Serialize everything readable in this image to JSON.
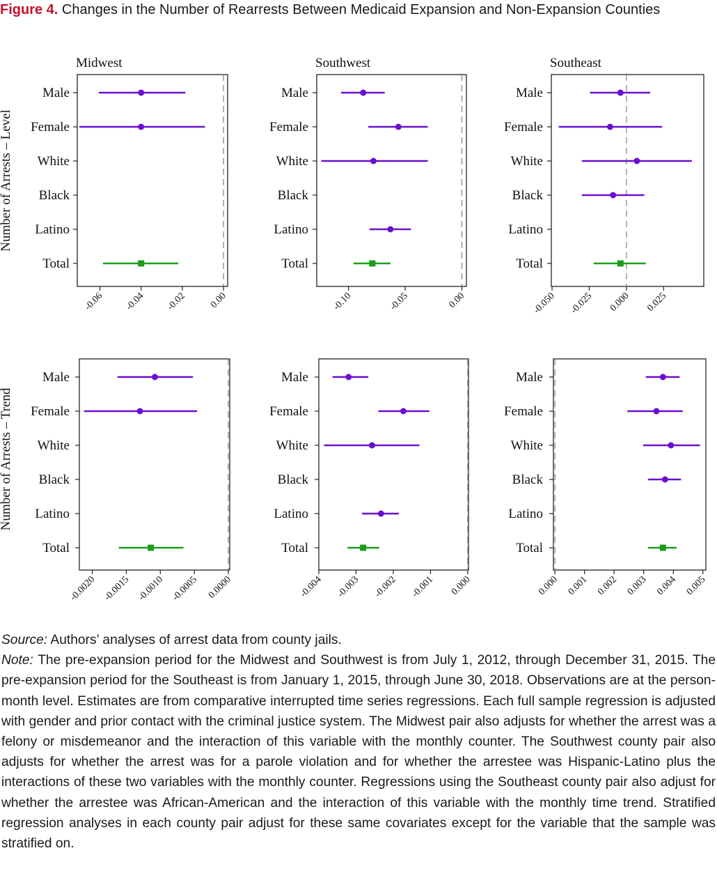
{
  "caption": {
    "label": "Figure 4.",
    "title": "Changes in the Number of Rearrests Between Medicaid Expansion and Non-Expansion Counties"
  },
  "chart_data": [
    {
      "type": "scatter",
      "subtype": "forest-plot",
      "row_label": "Number of Arrests – Level",
      "title": "Midwest",
      "xlim": [
        -0.071,
        0.002
      ],
      "ref_line": 0,
      "xticks": [
        -0.06,
        -0.04,
        -0.02,
        0.0
      ],
      "xtick_labels": [
        "-0.06",
        "-0.04",
        "-0.02",
        "0.00"
      ],
      "categories": [
        "Male",
        "Female",
        "White",
        "Black",
        "Latino",
        "Total"
      ],
      "estimates": [
        {
          "category": "Male",
          "est": -0.04,
          "lo": -0.0605,
          "hi": -0.0185
        },
        {
          "category": "Female",
          "est": -0.04,
          "lo": -0.07,
          "hi": -0.009
        },
        {
          "category": "Total",
          "est": -0.04,
          "lo": -0.0585,
          "hi": -0.022
        }
      ]
    },
    {
      "type": "scatter",
      "subtype": "forest-plot",
      "row_label": "",
      "title": "Southwest",
      "xlim": [
        -0.128,
        0.004
      ],
      "ref_line": 0,
      "xticks": [
        -0.1,
        -0.05,
        0.0
      ],
      "xtick_labels": [
        "-0.10",
        "-0.05",
        "0.00"
      ],
      "categories": [
        "Male",
        "Female",
        "White",
        "Black",
        "Latino",
        "Total"
      ],
      "estimates": [
        {
          "category": "Male",
          "est": -0.087,
          "lo": -0.1065,
          "hi": -0.068
        },
        {
          "category": "Female",
          "est": -0.056,
          "lo": -0.0825,
          "hi": -0.03
        },
        {
          "category": "White",
          "est": -0.078,
          "lo": -0.124,
          "hi": -0.03
        },
        {
          "category": "Latino",
          "est": -0.063,
          "lo": -0.0815,
          "hi": -0.045
        },
        {
          "category": "Total",
          "est": -0.079,
          "lo": -0.0955,
          "hi": -0.063
        }
      ]
    },
    {
      "type": "scatter",
      "subtype": "forest-plot",
      "row_label": "",
      "title": "Southeast",
      "xlim": [
        -0.0505,
        0.052
      ],
      "ref_line": 0,
      "xticks": [
        -0.05,
        -0.025,
        0.0,
        0.025
      ],
      "xtick_labels": [
        "-0.050",
        "-0.025",
        "0.000",
        "0.025"
      ],
      "categories": [
        "Male",
        "Female",
        "White",
        "Black",
        "Latino",
        "Total"
      ],
      "estimates": [
        {
          "category": "Male",
          "est": -0.004,
          "lo": -0.0245,
          "hi": 0.016
        },
        {
          "category": "Female",
          "est": -0.011,
          "lo": -0.0455,
          "hi": 0.024
        },
        {
          "category": "White",
          "est": 0.007,
          "lo": -0.03,
          "hi": 0.044
        },
        {
          "category": "Black",
          "est": -0.009,
          "lo": -0.03,
          "hi": 0.012
        },
        {
          "category": "Total",
          "est": -0.004,
          "lo": -0.022,
          "hi": 0.013
        }
      ]
    },
    {
      "type": "scatter",
      "subtype": "forest-plot",
      "row_label": "Number of Arrests – Trend",
      "title": "",
      "xlim": [
        -0.00219,
        2e-05
      ],
      "ref_line": 0,
      "xticks": [
        -0.002,
        -0.0015,
        -0.001,
        -0.0005,
        0.0
      ],
      "xtick_labels": [
        "-0.0020",
        "-0.0015",
        "-0.0010",
        "-0.0005",
        "0.0000"
      ],
      "categories": [
        "Male",
        "Female",
        "White",
        "Black",
        "Latino",
        "Total"
      ],
      "estimates": [
        {
          "category": "Male",
          "est": -0.00108,
          "lo": -0.00163,
          "hi": -0.00052
        },
        {
          "category": "Female",
          "est": -0.0013,
          "lo": -0.00212,
          "hi": -0.00046
        },
        {
          "category": "Total",
          "est": -0.00114,
          "lo": -0.00161,
          "hi": -0.00066
        }
      ]
    },
    {
      "type": "scatter",
      "subtype": "forest-plot",
      "row_label": "",
      "title": "",
      "xlim": [
        -0.004,
        2e-05
      ],
      "ref_line": 0,
      "xticks": [
        -0.004,
        -0.003,
        -0.002,
        -0.001,
        0.0
      ],
      "xtick_labels": [
        "-0.004",
        "-0.003",
        "-0.002",
        "-0.001",
        "0.000"
      ],
      "categories": [
        "Male",
        "Female",
        "White",
        "Black",
        "Latino",
        "Total"
      ],
      "estimates": [
        {
          "category": "Male",
          "est": -0.0032,
          "lo": -0.00363,
          "hi": -0.00267
        },
        {
          "category": "Female",
          "est": -0.00173,
          "lo": -0.0024,
          "hi": -0.00103
        },
        {
          "category": "White",
          "est": -0.00257,
          "lo": -0.00386,
          "hi": -0.0013
        },
        {
          "category": "Latino",
          "est": -0.00233,
          "lo": -0.00284,
          "hi": -0.00185
        },
        {
          "category": "Total",
          "est": -0.00281,
          "lo": -0.00323,
          "hi": -0.00238
        }
      ]
    },
    {
      "type": "scatter",
      "subtype": "forest-plot",
      "row_label": "",
      "title": "",
      "xlim": [
        -5e-05,
        0.0051
      ],
      "ref_line": 0,
      "xticks": [
        0.0,
        0.001,
        0.002,
        0.003,
        0.004,
        0.005
      ],
      "xtick_labels": [
        "0.000",
        "0.001",
        "0.002",
        "0.003",
        "0.004",
        "0.005"
      ],
      "categories": [
        "Male",
        "Female",
        "White",
        "Black",
        "Latino",
        "Total"
      ],
      "estimates": [
        {
          "category": "Male",
          "est": 0.00365,
          "lo": 0.00307,
          "hi": 0.00421
        },
        {
          "category": "Female",
          "est": 0.00343,
          "lo": 0.00245,
          "hi": 0.00432
        },
        {
          "category": "White",
          "est": 0.00392,
          "lo": 0.00298,
          "hi": 0.0049
        },
        {
          "category": "Black",
          "est": 0.00372,
          "lo": 0.00315,
          "hi": 0.00426
        },
        {
          "category": "Total",
          "est": 0.00365,
          "lo": 0.00315,
          "hi": 0.00411
        }
      ]
    }
  ],
  "colors": {
    "subgroup": "#6a0fd1",
    "total": "#1a9e1a",
    "ref_line": "#888888",
    "caption_label": "#c8102e"
  },
  "notes": {
    "source_label": "Source:",
    "source_text": " Authors’ analyses of arrest data from county jails.",
    "note_label": "Note:",
    "note_text": " The pre-expansion period for the Midwest and Southwest is from July 1, 2012, through December 31, 2015. The pre-expansion period for the Southeast is from January 1, 2015, through June 30, 2018. Observations are at the person-month level. Estimates are from comparative interrupted time series regressions. Each full sample regression is adjusted with gender and prior contact with the criminal justice system. The Midwest pair also adjusts for whether the arrest was a felony or misdemeanor and the interaction of this variable with the monthly counter. The Southwest county pair also adjusts for whether the arrest was for a parole violation and for whether the arrestee was Hispanic-Latino plus the interactions of these two variables with the monthly counter. Regressions using the Southeast county pair also adjust for whether the arrestee was African-American and the interaction of this variable with the monthly time trend. Stratified regression analyses in each county pair adjust for these same covariates except for the variable that the sample was stratified on."
  }
}
